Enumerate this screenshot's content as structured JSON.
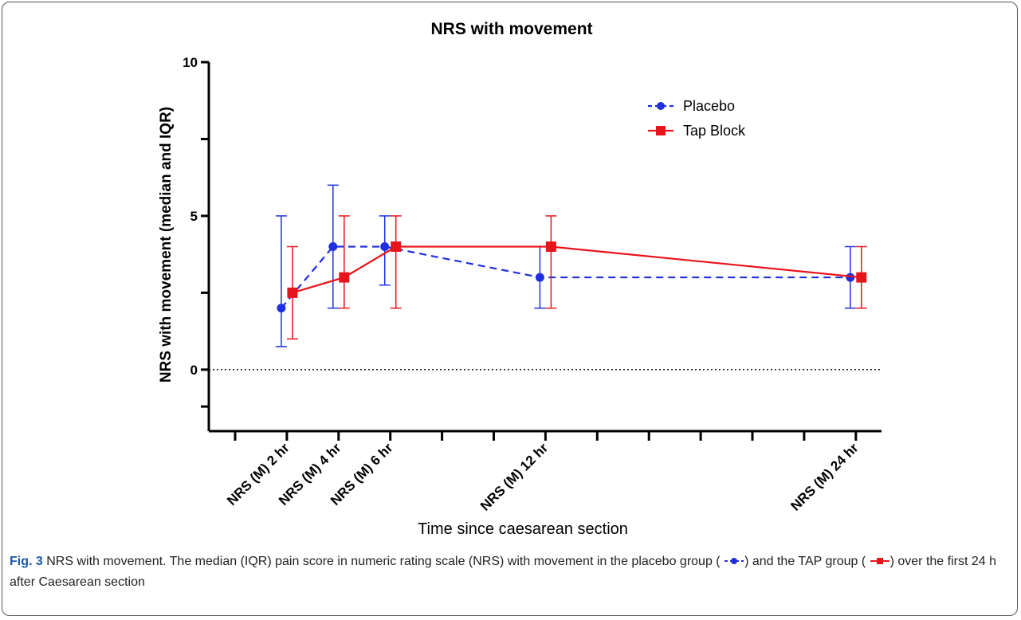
{
  "chart_data": {
    "type": "line",
    "title": "NRS with movement",
    "xlabel": "Time since caesarean section",
    "ylabel": "NRS with movement (median and IQR)",
    "ylim": [
      -2,
      10
    ],
    "yticks": [
      0,
      5,
      10
    ],
    "yticks_labels": [
      "0",
      "5",
      "10"
    ],
    "reference_line": {
      "y": 0,
      "style": "dotted"
    },
    "categories": [
      "NRS (M) 2 hr",
      "NRS (M) 4 hr",
      "NRS (M) 6 hr",
      "NRS (M) 12 hr",
      "NRS (M) 24 hr"
    ],
    "category_tick_index": [
      1,
      2,
      3,
      6,
      12
    ],
    "x_tick_count": 13,
    "legend_position": "top-right",
    "series": [
      {
        "name": "Placebo",
        "color": "#1f2fe0",
        "marker": "circle",
        "line": "dashed",
        "median": [
          2,
          4,
          4,
          3,
          3
        ],
        "q1": [
          0.75,
          2,
          2.75,
          2,
          2
        ],
        "q3": [
          5,
          6,
          5,
          4,
          4
        ]
      },
      {
        "name": "Tap Block",
        "color": "#e8141b",
        "marker": "square",
        "line": "solid",
        "median": [
          2.5,
          3,
          4,
          4,
          3
        ],
        "q1": [
          1,
          2,
          2,
          2,
          2
        ],
        "q3": [
          4,
          5,
          5,
          5,
          4
        ]
      }
    ]
  },
  "caption": {
    "label": "Fig. 3",
    "text_part1": " NRS with movement. The median (IQR) pain score in numeric rating scale (NRS) with movement in the placebo group (",
    "text_part2": ") and the TAP group (",
    "text_part3": ") over the first 24 h after Caesarean section"
  }
}
